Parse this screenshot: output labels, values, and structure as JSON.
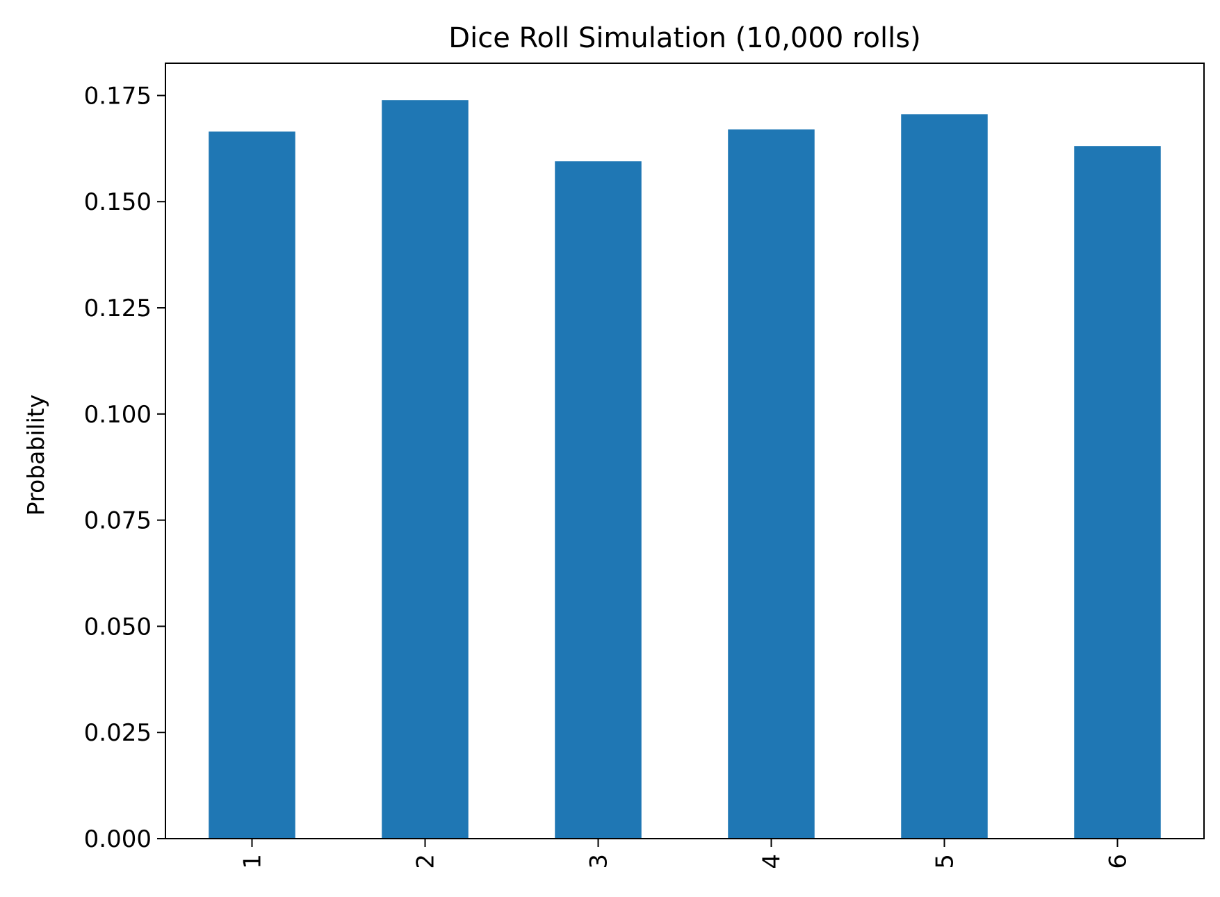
{
  "chart_data": {
    "type": "bar",
    "title": "Dice Roll Simulation (10,000 rolls)",
    "xlabel": "",
    "ylabel": "Probability",
    "categories": [
      "1",
      "2",
      "3",
      "4",
      "5",
      "6"
    ],
    "values": [
      0.1665,
      0.1739,
      0.1595,
      0.167,
      0.1706,
      0.1631
    ],
    "ylim": [
      0,
      0.1826
    ],
    "yticks": [
      0.0,
      0.025,
      0.05,
      0.075,
      0.1,
      0.125,
      0.15,
      0.175
    ],
    "ytick_labels": [
      "0.000",
      "0.025",
      "0.050",
      "0.075",
      "0.100",
      "0.125",
      "0.150",
      "0.175"
    ],
    "bar_color": "#1f77b4",
    "grid": false,
    "xtick_rotation": "vertical"
  }
}
